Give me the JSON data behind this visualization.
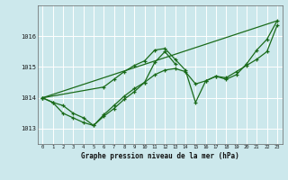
{
  "background_color": "#cce8ec",
  "grid_color": "#ffffff",
  "line_color": "#1a6b1a",
  "title": "Graphe pression niveau de la mer (hPa)",
  "xlim": [
    -0.5,
    23.5
  ],
  "ylim": [
    1012.5,
    1017.0
  ],
  "yticks": [
    1013,
    1014,
    1015,
    1016
  ],
  "xticks": [
    0,
    1,
    2,
    3,
    4,
    5,
    6,
    7,
    8,
    9,
    10,
    11,
    12,
    13,
    14,
    15,
    16,
    17,
    18,
    19,
    20,
    21,
    22,
    23
  ],
  "line1_x": [
    0,
    1,
    2,
    3,
    4,
    5,
    6,
    7,
    8,
    9,
    10,
    11,
    12,
    13,
    14,
    15,
    16,
    17,
    18,
    19,
    20,
    21,
    22,
    23
  ],
  "line1_y": [
    1014.0,
    1013.85,
    1013.75,
    1013.5,
    1013.35,
    1013.1,
    1013.45,
    1013.75,
    1014.05,
    1014.3,
    1014.5,
    1014.75,
    1014.9,
    1014.95,
    1014.85,
    1014.45,
    1014.55,
    1014.7,
    1014.65,
    1014.85,
    1015.05,
    1015.25,
    1015.5,
    1016.35
  ],
  "line2_x": [
    0,
    6,
    7,
    8,
    9,
    10,
    11,
    12,
    13,
    14,
    15,
    16,
    17,
    18,
    19,
    20,
    21,
    22,
    23
  ],
  "line2_y": [
    1014.0,
    1014.35,
    1014.6,
    1014.85,
    1015.05,
    1015.2,
    1015.55,
    1015.6,
    1015.25,
    1014.9,
    1013.85,
    1014.55,
    1014.7,
    1014.6,
    1014.75,
    1015.1,
    1015.55,
    1015.9,
    1016.5
  ],
  "line3_x": [
    0,
    1,
    2,
    3,
    4,
    5,
    6,
    7,
    8,
    9,
    10,
    11,
    12,
    13
  ],
  "line3_y": [
    1014.0,
    1013.85,
    1013.5,
    1013.35,
    1013.2,
    1013.1,
    1013.4,
    1013.65,
    1013.95,
    1014.2,
    1014.5,
    1015.15,
    1015.5,
    1015.1
  ],
  "line4_x": [
    0,
    23
  ],
  "line4_y": [
    1014.0,
    1016.5
  ]
}
